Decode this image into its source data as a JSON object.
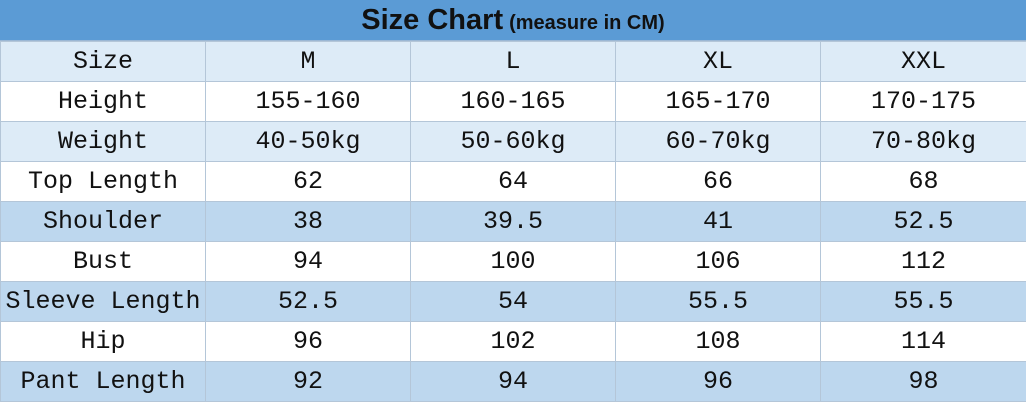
{
  "header": {
    "title": "Size Chart",
    "subtitle": "(measure in CM)"
  },
  "table": {
    "rows": [
      [
        "Size",
        "M",
        "L",
        "XL",
        "XXL"
      ],
      [
        "Height",
        "155-160",
        "160-165",
        "165-170",
        "170-175"
      ],
      [
        "Weight",
        "40-50kg",
        "50-60kg",
        "60-70kg",
        "70-80kg"
      ],
      [
        "Top Length",
        "62",
        "64",
        "66",
        "68"
      ],
      [
        "Shoulder",
        "38",
        "39.5",
        "41",
        "52.5"
      ],
      [
        "Bust",
        "94",
        "100",
        "106",
        "112"
      ],
      [
        "Sleeve Length",
        "52.5",
        "54",
        "55.5",
        "55.5"
      ],
      [
        "Hip",
        "96",
        "102",
        "108",
        "114"
      ],
      [
        "Pant Length",
        "92",
        "94",
        "96",
        "98"
      ]
    ]
  }
}
